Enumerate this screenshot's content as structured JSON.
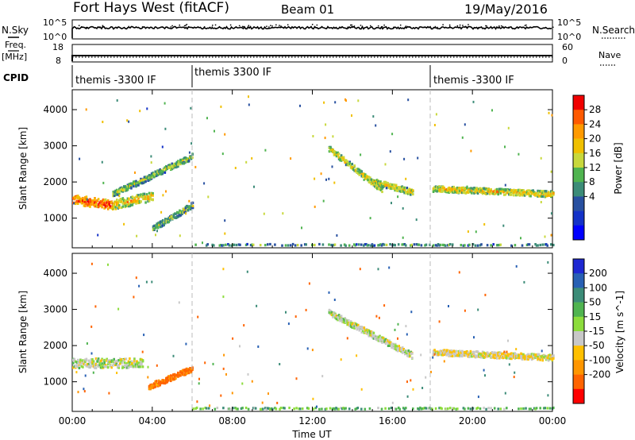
{
  "header": {
    "radar": "Fort Hays West (fitACF)",
    "beam": "Beam 01",
    "date": "19/May/2016"
  },
  "strips": {
    "nsky_label": "N.Sky",
    "nsky_ticks": [
      "10^5",
      "10^0"
    ],
    "nsearch_label": "N.Search",
    "nsearch_ticks": [
      "10^5",
      "10^0"
    ],
    "freq_label_1": "Freq.",
    "freq_label_2": "[MHz]",
    "freq_ticks": [
      "18",
      "8"
    ],
    "nave_label": "Nave",
    "nave_ticks": [
      "60",
      "0"
    ],
    "cpid_label": "CPID",
    "cpid_segments": [
      {
        "label": "themis -3300 IF",
        "start_h": 0
      },
      {
        "label": "themis 3300 IF",
        "start_h": 6
      },
      {
        "label": "themis -3300 IF",
        "start_h": 18
      }
    ]
  },
  "chart_data": [
    {
      "type": "heatmap",
      "panel": "power",
      "ylabel": "Slant Range [km]",
      "xlabel": "",
      "xlim": [
        0,
        24
      ],
      "ylim": [
        180,
        4550
      ],
      "yticks": [
        1000,
        2000,
        3000,
        4000
      ],
      "xticks": [
        0,
        4,
        8,
        12,
        16,
        20,
        24
      ],
      "colorbar": {
        "label": "Power [dB]",
        "ticks": [
          "28",
          "24",
          "20",
          "16",
          "12",
          "8",
          "4"
        ],
        "colors": [
          "#f00000",
          "#ff5a00",
          "#ff9a00",
          "#f0c000",
          "#c8d83c",
          "#50b450",
          "#3c8c78",
          "#2850a0",
          "#1432c8",
          "#0000ff"
        ]
      },
      "features": [
        {
          "name": "morning band",
          "t0": 0.0,
          "t1": 2.0,
          "r0": 1500,
          "r1": 1350,
          "mean": 20
        },
        {
          "name": "morning band rise",
          "t0": 2.0,
          "t1": 4.0,
          "r0": 1350,
          "r1": 1600,
          "mean": 14
        },
        {
          "name": "upper arc",
          "t0": 2.0,
          "t1": 6.0,
          "r0": 1650,
          "r1": 2700,
          "mean": 9
        },
        {
          "name": "lower arc",
          "t0": 4.0,
          "t1": 6.0,
          "r0": 700,
          "r1": 1350,
          "mean": 8
        },
        {
          "name": "afternoon arc",
          "t0": 12.8,
          "t1": 15.5,
          "r0": 2900,
          "r1": 1750,
          "mean": 12
        },
        {
          "name": "afternoon arc 2",
          "t0": 15.0,
          "t1": 17.0,
          "r0": 2000,
          "r1": 1700,
          "mean": 12
        },
        {
          "name": "evening band",
          "t0": 18.0,
          "t1": 24.0,
          "r0": 1800,
          "r1": 1650,
          "mean": 13
        },
        {
          "name": "ground scatter line",
          "t0": 6.0,
          "t1": 24.0,
          "r0": 250,
          "r1": 250,
          "mean": 6
        }
      ]
    },
    {
      "type": "heatmap",
      "panel": "velocity",
      "ylabel": "Slant Range [km]",
      "xlabel": "Time UT",
      "xlim": [
        0,
        24
      ],
      "ylim": [
        180,
        4550
      ],
      "yticks": [
        1000,
        2000,
        3000,
        4000
      ],
      "xticks": [
        0,
        4,
        8,
        12,
        16,
        20,
        24
      ],
      "xticklabels": [
        "00:00",
        "04:00",
        "08:00",
        "12:00",
        "16:00",
        "20:00",
        "00:00"
      ],
      "colorbar": {
        "label": "Velocity [m s^-1]",
        "ticks": [
          "200",
          "100",
          "50",
          "15",
          "-15",
          "-50",
          "-100",
          "-200"
        ],
        "colors": [
          "#1e28d2",
          "#2860b4",
          "#3c8c78",
          "#50b450",
          "#8cdc3c",
          "#c8c8c8",
          "#ffc000",
          "#ff9600",
          "#ff6400",
          "#ff0000"
        ]
      },
      "features": [
        {
          "name": "morning band",
          "t0": 0.0,
          "t1": 3.5,
          "r0": 1500,
          "r1": 1500,
          "mean": 0
        },
        {
          "name": "orange arc",
          "t0": 3.8,
          "t1": 6.0,
          "r0": 850,
          "r1": 1350,
          "mean": -80
        },
        {
          "name": "afternoon arc",
          "t0": 12.8,
          "t1": 17.0,
          "r0": 2900,
          "r1": 1700,
          "mean": 0
        },
        {
          "name": "evening band",
          "t0": 18.0,
          "t1": 24.0,
          "r0": 1800,
          "r1": 1650,
          "mean": -10
        },
        {
          "name": "ground scatter line",
          "t0": 6.0,
          "t1": 24.0,
          "r0": 250,
          "r1": 250,
          "mean": 20
        }
      ]
    }
  ]
}
